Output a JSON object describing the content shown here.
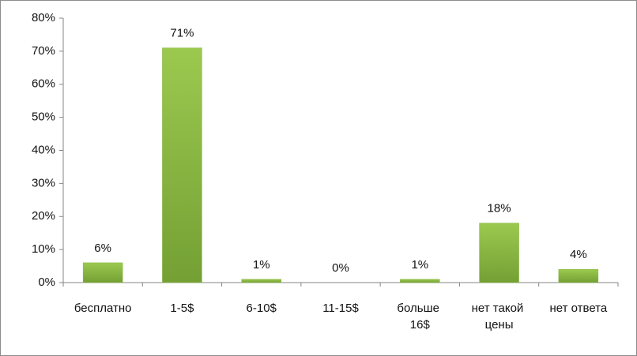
{
  "chart_data": {
    "type": "bar",
    "categories": [
      "бесплатно",
      "1-5$",
      "6-10$",
      "11-15$",
      "больше 16$",
      "нет такой цены",
      "нет ответа"
    ],
    "values": [
      6,
      71,
      1,
      0,
      1,
      18,
      4
    ],
    "value_labels": [
      "6%",
      "71%",
      "1%",
      "0%",
      "1%",
      "18%",
      "4%"
    ],
    "color": "#8ab845",
    "ylim": [
      0,
      80
    ],
    "yticks": [
      {
        "value": 0,
        "label": "0%"
      },
      {
        "value": 10,
        "label": "10%"
      },
      {
        "value": 20,
        "label": "20%"
      },
      {
        "value": 30,
        "label": "30%"
      },
      {
        "value": 40,
        "label": "40%"
      },
      {
        "value": 50,
        "label": "50%"
      },
      {
        "value": 60,
        "label": "60%"
      },
      {
        "value": 70,
        "label": "70%"
      },
      {
        "value": 80,
        "label": "80%"
      }
    ],
    "grid": false
  }
}
